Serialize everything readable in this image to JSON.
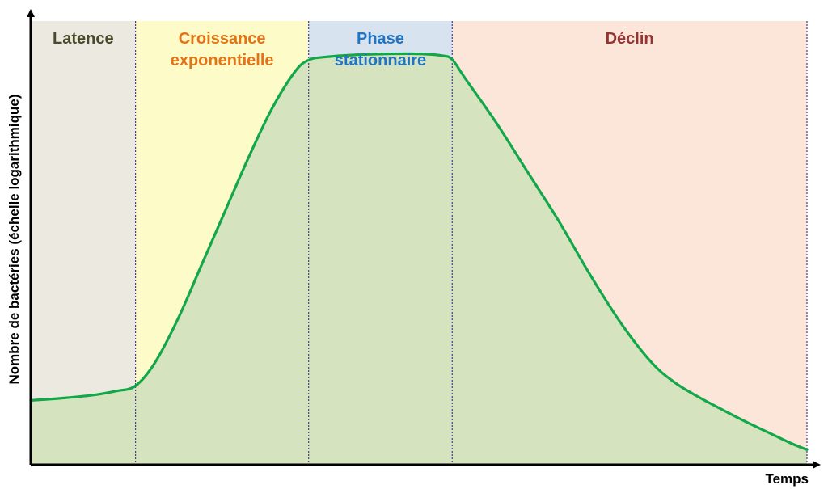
{
  "chart_data": {
    "type": "area",
    "title": "",
    "xlabel": "Temps",
    "ylabel": "Nombre de bactéries (échelle logarithmique)",
    "xlim": [
      0,
      100
    ],
    "ylim": [
      0,
      100
    ],
    "grid": false,
    "ticks": false,
    "colors": {
      "curve": "#12a84a",
      "area_fill": "#d6e3bf",
      "divider": "#4b3a9a",
      "axis": "#000000"
    },
    "phases": [
      {
        "label_lines": [
          "Latence"
        ],
        "x_start": 0,
        "x_end": 13.5,
        "bg": "#ece9e0",
        "text_color": "#4a4a2a"
      },
      {
        "label_lines": [
          "Croissance",
          "exponentielle"
        ],
        "x_start": 13.5,
        "x_end": 35.8,
        "bg": "#fdfbc8",
        "text_color": "#e47316"
      },
      {
        "label_lines": [
          "Phase",
          "stationnaire"
        ],
        "x_start": 35.8,
        "x_end": 54.3,
        "bg": "#d8e3f0",
        "text_color": "#1f74c4"
      },
      {
        "label_lines": [
          "Déclin"
        ],
        "x_start": 54.3,
        "x_end": 100,
        "bg": "#fbe6d9",
        "text_color": "#993333"
      }
    ],
    "series": [
      {
        "x": [
          0,
          4,
          8,
          11,
          13.5,
          16,
          19,
          22,
          25,
          28,
          31,
          34,
          35.8,
          38,
          42,
          46,
          50,
          53,
          54.3,
          56,
          60,
          64,
          68,
          72,
          76,
          80,
          83,
          86,
          89,
          92,
          95,
          98,
          100
        ],
        "y": [
          14.5,
          15.0,
          15.7,
          16.6,
          17.8,
          23,
          33,
          45,
          57,
          69,
          80,
          88.5,
          91.2,
          91.9,
          92.4,
          92.6,
          92.6,
          92.2,
          91.3,
          87,
          77,
          66,
          55,
          43,
          32,
          23,
          18.5,
          15.3,
          12.5,
          9.8,
          7.3,
          4.8,
          3.4
        ]
      }
    ]
  }
}
